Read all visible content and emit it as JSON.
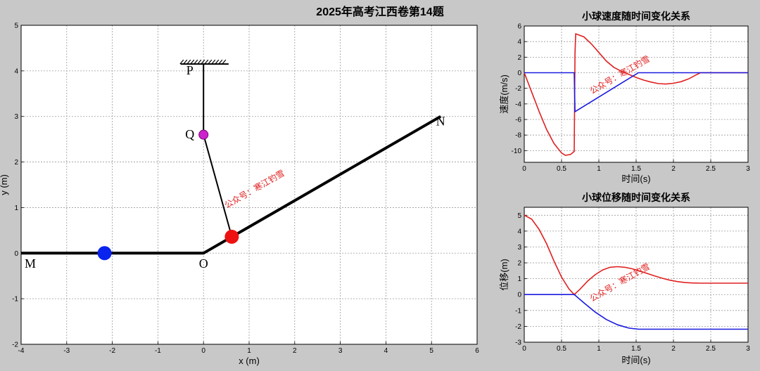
{
  "figure": {
    "title": "2025年高考江西卷第14题",
    "watermark": "公众号：寒江钓雪"
  },
  "chart_data": [
    {
      "type": "line",
      "role": "scene",
      "xlabel": "x (m)",
      "ylabel": "y (m)",
      "xlim": [
        -4,
        6
      ],
      "ylim": [
        -2,
        5
      ],
      "xticks": [
        -4,
        -3,
        -2,
        -1,
        0,
        1,
        2,
        3,
        4,
        5,
        6
      ],
      "yticks": [
        -2,
        -1,
        0,
        1,
        2,
        3,
        4,
        5
      ],
      "grid": true,
      "track": [
        [
          -4,
          0
        ],
        [
          0,
          0
        ],
        [
          5.2,
          3.0
        ]
      ],
      "ceiling": {
        "x": [
          -0.5,
          0.55
        ],
        "y": 4.15
      },
      "string": [
        [
          0,
          4.15
        ],
        [
          0,
          2.6
        ],
        [
          0.62,
          0.36
        ]
      ],
      "points": [
        {
          "label": "P",
          "x": -0.3,
          "y": 3.92
        },
        {
          "label": "Q",
          "x": -0.3,
          "y": 2.52
        },
        {
          "label": "O",
          "x": 0.0,
          "y": -0.32
        },
        {
          "label": "M",
          "x": -3.8,
          "y": -0.32
        },
        {
          "label": "N",
          "x": 5.2,
          "y": 2.8
        }
      ],
      "balls": [
        {
          "name": "blue",
          "x": -2.17,
          "y": 0,
          "color": "#0a23ee"
        },
        {
          "name": "red",
          "x": 0.62,
          "y": 0.36,
          "color": "#ee1111"
        },
        {
          "name": "peg-Q",
          "x": 0.0,
          "y": 2.6,
          "color": "#cc22cc"
        }
      ]
    },
    {
      "type": "line",
      "role": "velocity",
      "title": "小球速度随时间变化关系",
      "xlabel": "时间(s)",
      "ylabel": "速度(m/s)",
      "xlim": [
        0,
        3
      ],
      "ylim": [
        -11.5,
        6
      ],
      "xticks": [
        0,
        0.5,
        1,
        1.5,
        2,
        2.5,
        3
      ],
      "yticks": [
        -10,
        -8,
        -6,
        -4,
        -2,
        0,
        2,
        4,
        6
      ],
      "grid": true,
      "series": [
        {
          "color": "#e02020",
          "points": [
            [
              0,
              0
            ],
            [
              0.1,
              -2.5
            ],
            [
              0.2,
              -5
            ],
            [
              0.3,
              -7.3
            ],
            [
              0.4,
              -9.1
            ],
            [
              0.5,
              -10.3
            ],
            [
              0.55,
              -10.6
            ],
            [
              0.62,
              -10.5
            ],
            [
              0.67,
              -10.1
            ],
            [
              0.68,
              2.5
            ],
            [
              0.69,
              5.0
            ],
            [
              0.8,
              4.6
            ],
            [
              0.9,
              3.7
            ],
            [
              1.0,
              2.6
            ],
            [
              1.1,
              1.5
            ],
            [
              1.2,
              0.7
            ],
            [
              1.3,
              0.2
            ],
            [
              1.4,
              -0.2
            ],
            [
              1.5,
              -0.6
            ],
            [
              1.6,
              -0.95
            ],
            [
              1.7,
              -1.2
            ],
            [
              1.8,
              -1.4
            ],
            [
              1.9,
              -1.45
            ],
            [
              2.0,
              -1.35
            ],
            [
              2.1,
              -1.15
            ],
            [
              2.2,
              -0.8
            ],
            [
              2.3,
              -0.3
            ],
            [
              2.36,
              0
            ],
            [
              3,
              0
            ]
          ]
        },
        {
          "color": "#1a1ae0",
          "points": [
            [
              0,
              0
            ],
            [
              0.67,
              0
            ],
            [
              0.68,
              -5.0
            ],
            [
              1.53,
              0
            ],
            [
              3,
              0
            ]
          ]
        }
      ]
    },
    {
      "type": "line",
      "role": "displacement",
      "title": "小球位移随时间变化关系",
      "xlabel": "时间(s)",
      "ylabel": "位移(m)",
      "xlim": [
        0,
        3
      ],
      "ylim": [
        -3,
        5.5
      ],
      "xticks": [
        0,
        0.5,
        1,
        1.5,
        2,
        2.5,
        3
      ],
      "yticks": [
        -3,
        -2,
        -1,
        0,
        1,
        2,
        3,
        4,
        5
      ],
      "grid": true,
      "series": [
        {
          "color": "#e02020",
          "points": [
            [
              0,
              5
            ],
            [
              0.1,
              4.75
            ],
            [
              0.2,
              4.1
            ],
            [
              0.3,
              3.2
            ],
            [
              0.4,
              2.1
            ],
            [
              0.5,
              1.1
            ],
            [
              0.6,
              0.35
            ],
            [
              0.67,
              0
            ],
            [
              0.75,
              0.35
            ],
            [
              0.85,
              0.85
            ],
            [
              0.95,
              1.25
            ],
            [
              1.05,
              1.55
            ],
            [
              1.15,
              1.72
            ],
            [
              1.25,
              1.76
            ],
            [
              1.35,
              1.72
            ],
            [
              1.45,
              1.62
            ],
            [
              1.55,
              1.48
            ],
            [
              1.65,
              1.33
            ],
            [
              1.75,
              1.17
            ],
            [
              1.85,
              1.03
            ],
            [
              1.95,
              0.91
            ],
            [
              2.05,
              0.82
            ],
            [
              2.15,
              0.76
            ],
            [
              2.25,
              0.73
            ],
            [
              2.36,
              0.72
            ],
            [
              3,
              0.72
            ]
          ]
        },
        {
          "color": "#1a1ae0",
          "points": [
            [
              0,
              0
            ],
            [
              0.67,
              0
            ],
            [
              0.8,
              -0.52
            ],
            [
              0.95,
              -1.1
            ],
            [
              1.1,
              -1.57
            ],
            [
              1.25,
              -1.9
            ],
            [
              1.4,
              -2.11
            ],
            [
              1.53,
              -2.18
            ],
            [
              3,
              -2.18
            ]
          ]
        }
      ]
    }
  ]
}
